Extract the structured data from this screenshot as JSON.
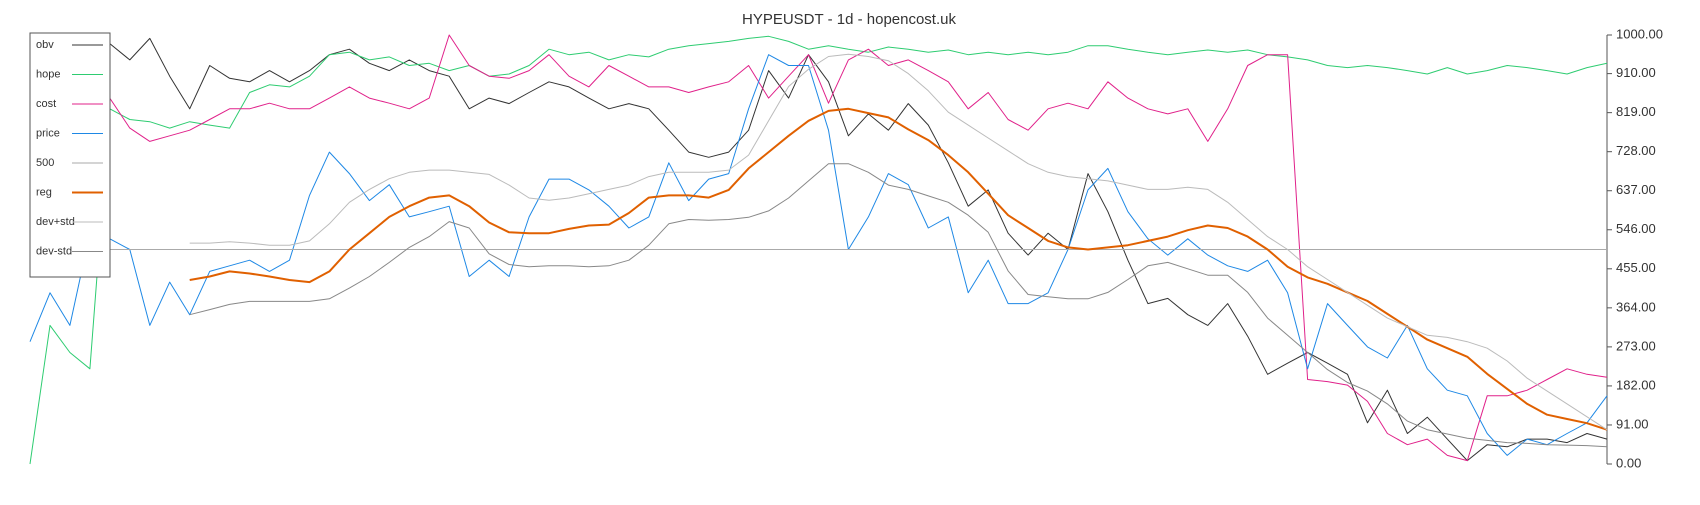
{
  "chart_data": {
    "type": "line",
    "title": "HYPEUSDT - 1d - hopencost.uk",
    "ylim": [
      0,
      1000
    ],
    "yticks": [
      {
        "value": 1000,
        "label": "1000.00"
      },
      {
        "value": 910,
        "label": "910.00"
      },
      {
        "value": 819,
        "label": "819.00"
      },
      {
        "value": 728,
        "label": "728.00"
      },
      {
        "value": 637,
        "label": "637.00"
      },
      {
        "value": 546,
        "label": "546.00"
      },
      {
        "value": 455,
        "label": "455.00"
      },
      {
        "value": 364,
        "label": "364.00"
      },
      {
        "value": 273,
        "label": "273.00"
      },
      {
        "value": 182,
        "label": "182.00"
      },
      {
        "value": 91,
        "label": "91.00"
      },
      {
        "value": 0,
        "label": "0.00"
      }
    ],
    "legend": "upper left",
    "series": [
      {
        "name": "obv",
        "color": "#333333",
        "values": [
          null,
          null,
          null,
          null,
          980,
          942,
          992,
          904,
          828,
          929,
          899,
          891,
          917,
          891,
          917,
          954,
          967,
          934,
          917,
          942,
          917,
          904,
          828,
          853,
          840,
          866,
          891,
          879,
          853,
          828,
          840,
          828,
          778,
          727,
          715,
          727,
          778,
          917,
          853,
          954,
          891,
          765,
          816,
          778,
          840,
          790,
          702,
          601,
          639,
          538,
          487,
          538,
          500,
          677,
          588,
          475,
          374,
          386,
          348,
          323,
          374,
          298,
          209,
          235,
          260,
          235,
          209,
          96,
          172,
          71,
          109,
          58,
          8,
          45,
          40,
          58,
          58,
          50,
          71,
          58
        ]
      },
      {
        "name": "hope",
        "color": "#2ecc71",
        "values": [
          0,
          323,
          260,
          222,
          828,
          803,
          798,
          783,
          798,
          790,
          783,
          866,
          884,
          879,
          904,
          954,
          960,
          942,
          949,
          929,
          934,
          917,
          929,
          904,
          909,
          929,
          967,
          954,
          960,
          942,
          954,
          949,
          967,
          975,
          980,
          985,
          992,
          997,
          985,
          967,
          975,
          967,
          960,
          972,
          967,
          960,
          965,
          954,
          960,
          954,
          960,
          954,
          960,
          975,
          975,
          967,
          960,
          954,
          960,
          965,
          960,
          965,
          954,
          949,
          942,
          929,
          924,
          929,
          924,
          917,
          909,
          924,
          909,
          917,
          929,
          924,
          917,
          909,
          924,
          934
        ]
      },
      {
        "name": "cost",
        "color": "#e0218a",
        "values": [
          null,
          null,
          841,
          828,
          853,
          783,
          752,
          765,
          778,
          803,
          828,
          828,
          841,
          828,
          828,
          853,
          879,
          853,
          841,
          828,
          853,
          1000,
          929,
          904,
          899,
          917,
          954,
          904,
          879,
          929,
          904,
          879,
          879,
          866,
          879,
          891,
          929,
          853,
          904,
          954,
          841,
          942,
          967,
          929,
          942,
          917,
          891,
          828,
          866,
          803,
          778,
          828,
          841,
          828,
          891,
          853,
          828,
          816,
          828,
          752,
          828,
          929,
          954,
          954,
          197,
          192,
          184,
          146,
          71,
          45,
          58,
          20,
          8,
          159,
          159,
          172,
          197,
          222,
          209,
          202
        ]
      },
      {
        "name": "price",
        "color": "#1e88e5",
        "values": [
          285,
          399,
          323,
          538,
          525,
          500,
          323,
          424,
          348,
          449,
          462,
          475,
          449,
          475,
          626,
          727,
          677,
          614,
          651,
          576,
          588,
          601,
          437,
          475,
          437,
          576,
          664,
          664,
          639,
          601,
          550,
          576,
          702,
          614,
          664,
          677,
          828,
          954,
          929,
          929,
          778,
          500,
          576,
          677,
          651,
          550,
          576,
          399,
          475,
          374,
          374,
          399,
          500,
          639,
          689,
          588,
          525,
          487,
          525,
          487,
          462,
          449,
          475,
          399,
          222,
          374,
          323,
          273,
          247,
          323,
          222,
          172,
          159,
          71,
          20,
          58,
          45,
          71,
          96,
          159
        ]
      },
      {
        "name": "500",
        "color": "#aaaaaa",
        "type": "hline",
        "value": 500
      },
      {
        "name": "reg",
        "color": "#e06000",
        "width": 2,
        "values": [
          null,
          null,
          null,
          null,
          null,
          null,
          null,
          null,
          429,
          437,
          449,
          444,
          437,
          429,
          424,
          449,
          500,
          538,
          576,
          601,
          621,
          626,
          601,
          563,
          540,
          538,
          538,
          548,
          556,
          558,
          585,
          621,
          626,
          626,
          621,
          639,
          689,
          727,
          765,
          800,
          823,
          828,
          818,
          808,
          780,
          755,
          720,
          680,
          630,
          580,
          550,
          520,
          505,
          500,
          505,
          510,
          520,
          530,
          545,
          556,
          550,
          530,
          500,
          460,
          435,
          420,
          400,
          380,
          350,
          320,
          290,
          270,
          250,
          210,
          175,
          140,
          115,
          105,
          95,
          80
        ]
      },
      {
        "name": "dev+std",
        "color": "#bbbbbb",
        "values": [
          null,
          null,
          null,
          null,
          null,
          null,
          null,
          null,
          515,
          515,
          518,
          515,
          510,
          510,
          520,
          560,
          610,
          640,
          665,
          680,
          685,
          685,
          680,
          675,
          650,
          620,
          615,
          620,
          630,
          640,
          650,
          670,
          680,
          680,
          680,
          685,
          720,
          800,
          880,
          920,
          950,
          955,
          950,
          940,
          910,
          870,
          820,
          790,
          760,
          730,
          700,
          680,
          670,
          665,
          660,
          650,
          640,
          640,
          645,
          640,
          610,
          570,
          530,
          500,
          460,
          430,
          400,
          370,
          340,
          320,
          300,
          295,
          285,
          270,
          240,
          200,
          170,
          140,
          110,
          80
        ]
      },
      {
        "name": "dev-std",
        "color": "#888888",
        "values": [
          null,
          null,
          null,
          null,
          null,
          null,
          null,
          null,
          348,
          360,
          372,
          379,
          379,
          379,
          379,
          385,
          410,
          437,
          470,
          505,
          530,
          565,
          550,
          490,
          465,
          460,
          462,
          462,
          460,
          462,
          475,
          510,
          560,
          570,
          568,
          570,
          575,
          590,
          620,
          660,
          700,
          700,
          680,
          650,
          640,
          625,
          610,
          580,
          540,
          450,
          395,
          390,
          385,
          385,
          400,
          430,
          462,
          470,
          455,
          440,
          440,
          400,
          340,
          300,
          260,
          220,
          190,
          170,
          140,
          100,
          80,
          70,
          60,
          55,
          50,
          48,
          45,
          44,
          43,
          40
        ]
      }
    ]
  }
}
